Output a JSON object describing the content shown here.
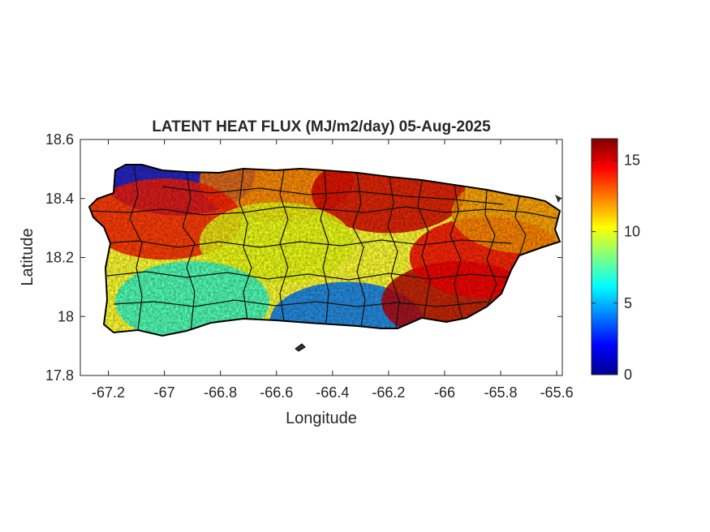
{
  "chart_data": {
    "type": "heatmap",
    "title": "LATENT HEAT FLUX (MJ/m2/day) 05-Aug-2025",
    "xlabel": "Longitude",
    "ylabel": "Latitude",
    "xlim": [
      -67.3,
      -65.58
    ],
    "ylim": [
      17.8,
      18.6
    ],
    "xticks": [
      -67.2,
      -67,
      -66.8,
      -66.6,
      -66.4,
      -66.2,
      -66,
      -65.8,
      -65.6
    ],
    "xtick_labels": [
      "-67.2",
      "-67",
      "-66.8",
      "-66.6",
      "-66.4",
      "-66.2",
      "-66",
      "-65.8",
      "-65.6"
    ],
    "yticks": [
      17.8,
      18,
      18.2,
      18.4,
      18.6
    ],
    "ytick_labels": [
      "17.8",
      "18",
      "18.2",
      "18.4",
      "18.6"
    ],
    "colorbar": {
      "colormap": "jet",
      "clim": [
        0,
        16.5
      ],
      "ticks": [
        0,
        5,
        10,
        15
      ],
      "tick_labels": [
        "0",
        "5",
        "10",
        "15"
      ]
    },
    "region": "Puerto Rico (municipality boundaries)",
    "regional_values": [
      {
        "area": "north-west coast",
        "lon": -66.95,
        "lat": 18.48,
        "value": 1.5
      },
      {
        "area": "north-central coast",
        "lon": -66.6,
        "lat": 18.46,
        "value": 12.5
      },
      {
        "area": "north-east coast",
        "lon": -66.2,
        "lat": 18.42,
        "value": 15.0
      },
      {
        "area": "west interior",
        "lon": -67.0,
        "lat": 18.33,
        "value": 14.0
      },
      {
        "area": "central mountains",
        "lon": -66.6,
        "lat": 18.25,
        "value": 10.0
      },
      {
        "area": "south-west plain",
        "lon": -66.9,
        "lat": 18.05,
        "value": 7.0
      },
      {
        "area": "south-central coast",
        "lon": -66.35,
        "lat": 17.98,
        "value": 4.0
      },
      {
        "area": "south-east",
        "lon": -65.95,
        "lat": 18.05,
        "value": 15.5
      },
      {
        "area": "east interior",
        "lon": -65.85,
        "lat": 18.2,
        "value": 14.5
      },
      {
        "area": "north-east tip",
        "lon": -65.7,
        "lat": 18.35,
        "value": 12.0
      }
    ]
  }
}
